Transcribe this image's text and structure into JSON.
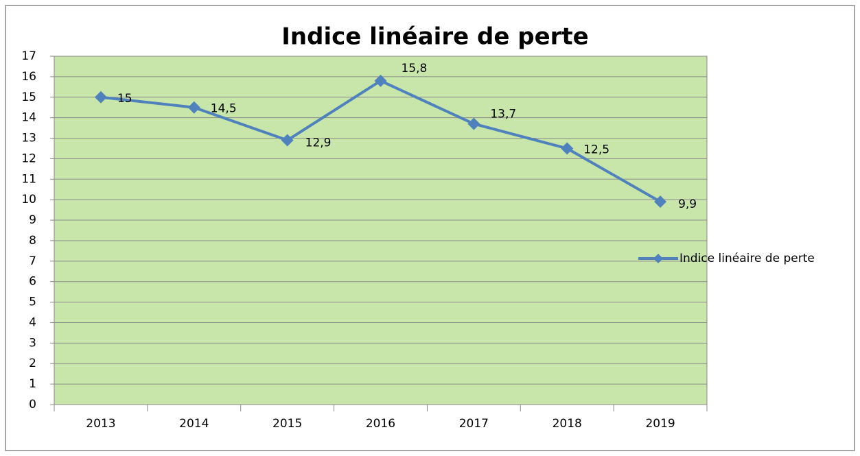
{
  "chart_data": {
    "type": "line",
    "title": "Indice linéaire de perte",
    "categories": [
      "2013",
      "2014",
      "2015",
      "2016",
      "2017",
      "2018",
      "2019"
    ],
    "series": [
      {
        "name": "Indice linéaire de perte",
        "color": "#4f81bd",
        "values": [
          15,
          14.5,
          12.9,
          15.8,
          13.7,
          12.5,
          9.9
        ],
        "value_labels": [
          "15",
          "14,5",
          "12,9",
          "15,8",
          "13,7",
          "12,5",
          "9,9"
        ]
      }
    ],
    "ylim": [
      0,
      17
    ],
    "yticks": [
      0,
      1,
      2,
      3,
      4,
      5,
      6,
      7,
      8,
      9,
      10,
      11,
      12,
      13,
      14,
      15,
      16,
      17
    ],
    "grid": true,
    "legend": "right",
    "plot_background": "#c8e6a9"
  }
}
